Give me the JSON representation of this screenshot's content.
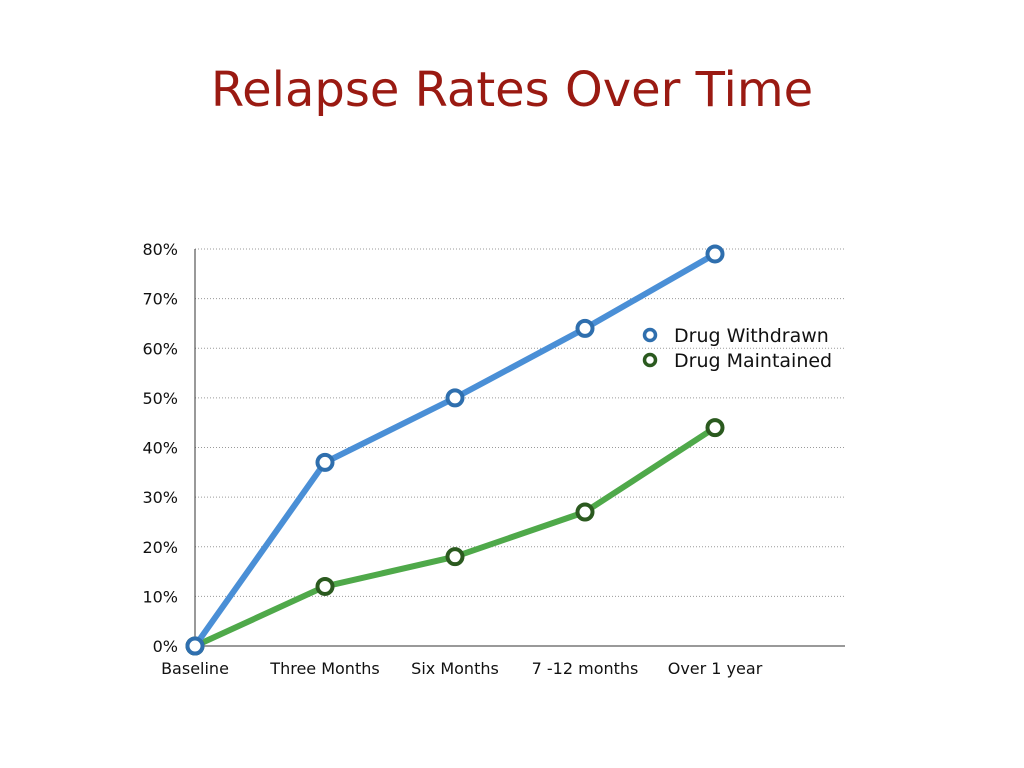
{
  "slide": {
    "title": "Relapse Rates Over Time"
  },
  "chart_data": {
    "type": "line",
    "title": "Relapse Rates Over Time",
    "xlabel": "",
    "ylabel": "",
    "categories": [
      "Baseline",
      "Three Months",
      "Six Months",
      "7 -12 months",
      "Over 1 year"
    ],
    "ylim": [
      0,
      80
    ],
    "y_ticks": [
      "0%",
      "10%",
      "20%",
      "30%",
      "40%",
      "50%",
      "60%",
      "70%",
      "80%"
    ],
    "grid": true,
    "legend_position": "right",
    "series": [
      {
        "name": "Drug Withdrawn",
        "values": [
          0,
          37,
          50,
          64,
          79
        ],
        "line_color": "#4a8fd6",
        "marker_color": "#2f6fae"
      },
      {
        "name": "Drug Maintained",
        "values": [
          0,
          12,
          18,
          27,
          44
        ],
        "line_color": "#4fa94a",
        "marker_color": "#2b5a1f"
      }
    ]
  }
}
